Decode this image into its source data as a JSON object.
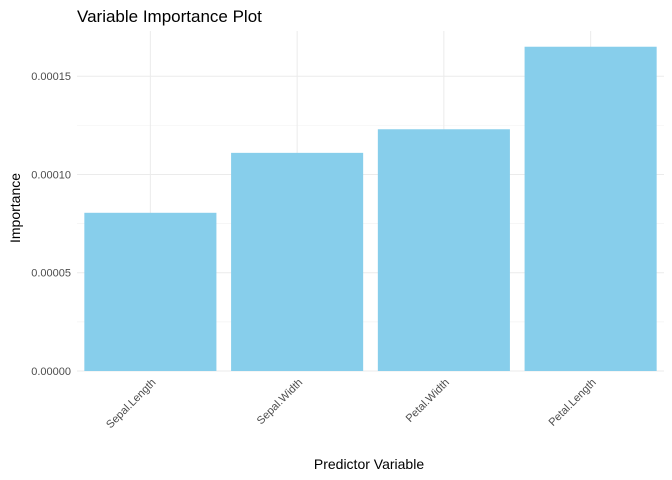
{
  "chart_data": {
    "type": "bar",
    "title": "Variable Importance Plot",
    "xlabel": "Predictor Variable",
    "ylabel": "Importance",
    "categories": [
      "Sepal.Length",
      "Sepal.Width",
      "Petal.Width",
      "Petal.Length"
    ],
    "values": [
      8.05e-05,
      0.000111,
      0.000123,
      0.000165
    ],
    "ylim": [
      0,
      0.000173
    ],
    "yticks": [
      0,
      5e-05,
      0.0001,
      0.00015
    ],
    "ytick_labels": [
      "0.00000",
      "0.00005",
      "0.00010",
      "0.00015"
    ],
    "bar_color": "#87CEEB",
    "grid": true,
    "legend": "none"
  }
}
